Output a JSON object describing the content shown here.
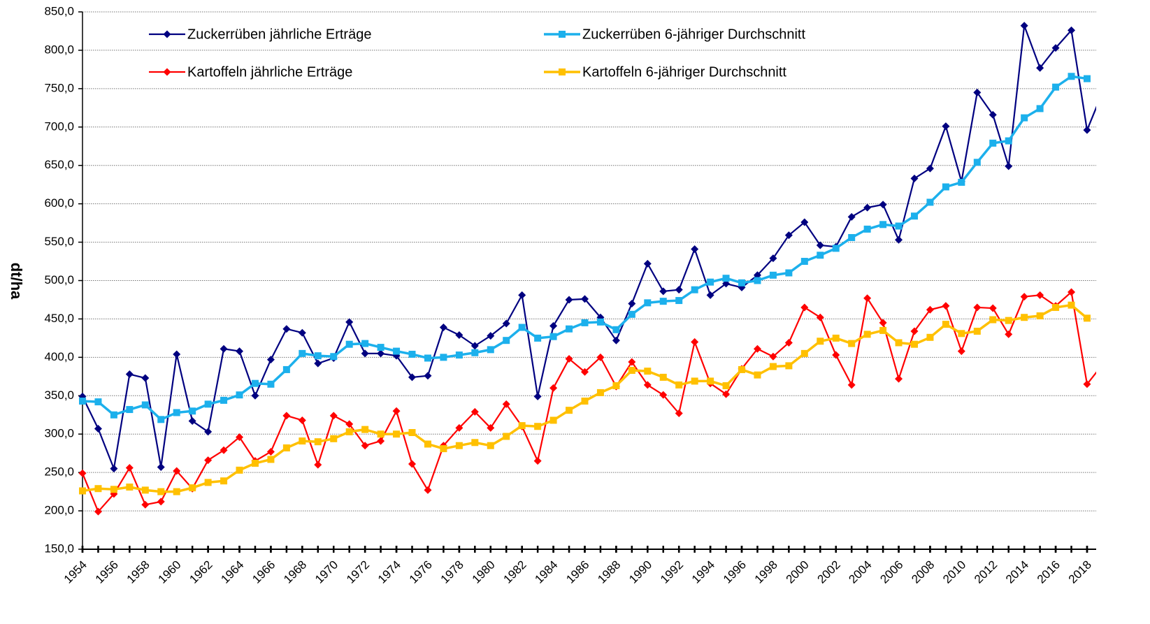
{
  "chart_data": {
    "type": "line",
    "y_label": "dt/ha",
    "x": [
      1954,
      1955,
      1956,
      1957,
      1958,
      1959,
      1960,
      1961,
      1962,
      1963,
      1964,
      1965,
      1966,
      1967,
      1968,
      1969,
      1970,
      1971,
      1972,
      1973,
      1974,
      1975,
      1976,
      1977,
      1978,
      1979,
      1980,
      1981,
      1982,
      1983,
      1984,
      1985,
      1986,
      1987,
      1988,
      1989,
      1990,
      1991,
      1992,
      1993,
      1994,
      1995,
      1996,
      1997,
      1998,
      1999,
      2000,
      2001,
      2002,
      2003,
      2004,
      2005,
      2006,
      2007,
      2008,
      2009,
      2010,
      2011,
      2012,
      2013,
      2014,
      2015,
      2016,
      2017,
      2018,
      2019
    ],
    "series": [
      {
        "name": "Zuckerrüben jährliche Erträge",
        "color": "#000080",
        "marker": "diamond",
        "values": [
          349,
          307,
          255,
          378,
          373,
          257,
          404,
          317,
          303,
          411,
          408,
          350,
          397,
          437,
          432,
          392,
          399,
          446,
          405,
          405,
          402,
          374,
          376,
          439,
          429,
          415,
          428,
          444,
          481,
          349,
          441,
          475,
          476,
          452,
          422,
          470,
          522,
          486,
          488,
          541,
          481,
          496,
          491,
          507,
          529,
          559,
          576,
          546,
          544,
          583,
          595,
          599,
          553,
          633,
          646,
          701,
          629,
          745,
          716,
          649,
          832,
          777,
          803,
          826,
          696,
          746
        ]
      },
      {
        "name": "Zuckerrüben 6-jähriger Durchschnitt",
        "color": "#1cb0ec",
        "marker": "square",
        "values": [
          343,
          342,
          325,
          332,
          338,
          319,
          328,
          330,
          339,
          344,
          351,
          366,
          365,
          384,
          405,
          402,
          401,
          417,
          418,
          413,
          408,
          404,
          399,
          400,
          403,
          406,
          410,
          422,
          439,
          425,
          427,
          437,
          445,
          446,
          436,
          456,
          471,
          473,
          474,
          488,
          498,
          503,
          497,
          500,
          507,
          510,
          525,
          533,
          542,
          556,
          567,
          573,
          571,
          584,
          602,
          622,
          628,
          654,
          679,
          682,
          712,
          724,
          752,
          766,
          763,
          null
        ]
      },
      {
        "name": "Kartoffeln jährliche Erträge",
        "color": "#ff0000",
        "marker": "diamond",
        "values": [
          249,
          199,
          222,
          256,
          208,
          212,
          252,
          229,
          266,
          279,
          296,
          265,
          277,
          324,
          318,
          260,
          324,
          313,
          285,
          291,
          330,
          261,
          227,
          285,
          308,
          329,
          308,
          339,
          310,
          265,
          360,
          398,
          381,
          400,
          362,
          394,
          364,
          351,
          327,
          420,
          366,
          352,
          385,
          411,
          401,
          419,
          465,
          452,
          403,
          364,
          477,
          445,
          372,
          434,
          462,
          467,
          408,
          465,
          464,
          430,
          479,
          481,
          467,
          485,
          365,
          391
        ]
      },
      {
        "name": "Kartoffeln 6-jähriger Durchschnitt",
        "color": "#ffc000",
        "marker": "square",
        "values": [
          226,
          229,
          228,
          231,
          227,
          225,
          225,
          230,
          237,
          239,
          253,
          262,
          267,
          282,
          291,
          290,
          294,
          303,
          306,
          300,
          300,
          302,
          287,
          281,
          285,
          289,
          285,
          297,
          311,
          310,
          318,
          331,
          343,
          354,
          363,
          383,
          382,
          374,
          364,
          369,
          369,
          363,
          384,
          377,
          388,
          389,
          405,
          421,
          425,
          418,
          430,
          435,
          419,
          417,
          426,
          443,
          431,
          434,
          449,
          448,
          452,
          454,
          465,
          468,
          451,
          null
        ]
      }
    ],
    "xlim": [
      1954,
      2018.58
    ],
    "xticks": [
      1954,
      1956,
      1958,
      1960,
      1962,
      1964,
      1966,
      1968,
      1970,
      1972,
      1974,
      1976,
      1978,
      1980,
      1982,
      1984,
      1986,
      1988,
      1990,
      1992,
      1994,
      1996,
      1998,
      2000,
      2002,
      2004,
      2006,
      2008,
      2010,
      2012,
      2014,
      2016,
      2018
    ],
    "ylim": [
      150,
      850
    ],
    "yticks": [
      {
        "value": 150,
        "label": "150,0"
      },
      {
        "value": 200,
        "label": "200,0"
      },
      {
        "value": 250,
        "label": "250,0"
      },
      {
        "value": 300,
        "label": "300,0"
      },
      {
        "value": 350,
        "label": "350,0"
      },
      {
        "value": 400,
        "label": "400,0"
      },
      {
        "value": 450,
        "label": "450,0"
      },
      {
        "value": 500,
        "label": "500,0"
      },
      {
        "value": 550,
        "label": "550,0"
      },
      {
        "value": 600,
        "label": "600,0"
      },
      {
        "value": 650,
        "label": "650,0"
      },
      {
        "value": 700,
        "label": "700,0"
      },
      {
        "value": 750,
        "label": "750,0"
      },
      {
        "value": 800,
        "label": "800,0"
      },
      {
        "value": 850,
        "label": "850,0"
      }
    ],
    "grid": true
  }
}
